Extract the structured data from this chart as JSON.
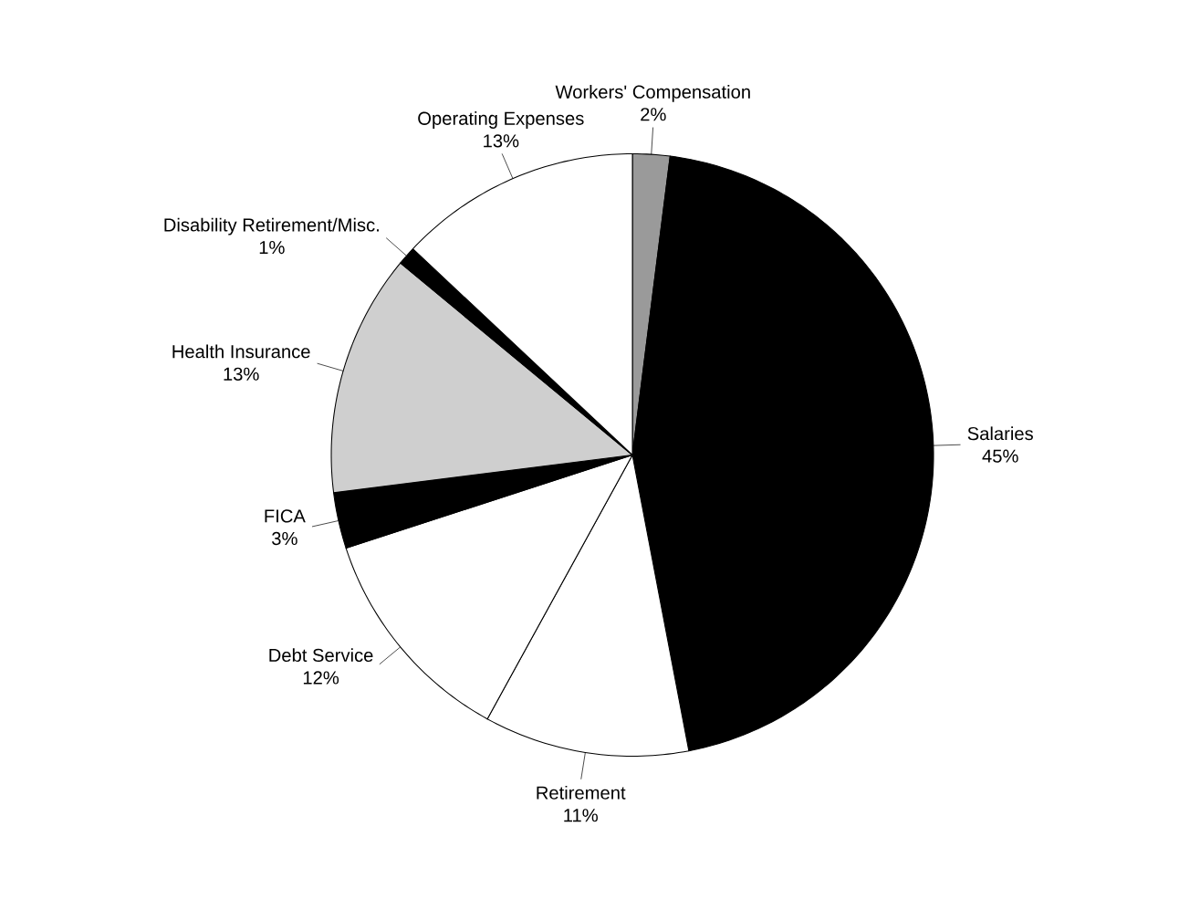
{
  "chart_data": {
    "type": "pie",
    "categories": [
      "Workers' Compensation",
      "Salaries",
      "Retirement",
      "Debt Service",
      "FICA",
      "Health Insurance",
      "Disability Retirement/Misc.",
      "Operating Expenses"
    ],
    "values": [
      2,
      45,
      11,
      12,
      3,
      13,
      1,
      13
    ],
    "value_labels": [
      "2%",
      "45%",
      "11%",
      "12%",
      "3%",
      "13%",
      "1%",
      "13%"
    ],
    "colors": [
      "#9a9a9a",
      "#000000",
      "#ffffff",
      "#ffffff",
      "#000000",
      "#cfcfcf",
      "#000000",
      "#ffffff"
    ]
  }
}
